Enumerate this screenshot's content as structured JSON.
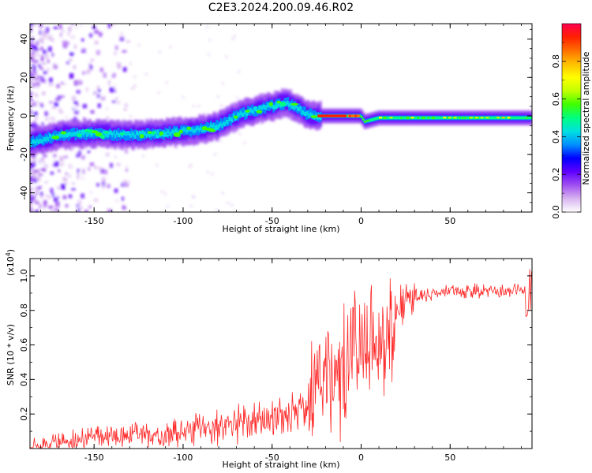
{
  "chart_data": [
    {
      "type": "heatmap",
      "title": "C2E3.2024.200.09.46.R02",
      "xlabel": "Height of straight line (km)",
      "ylabel": "Frequency (Hz)",
      "xlim": [
        -186,
        96
      ],
      "ylim": [
        -50,
        48
      ],
      "xticks": [
        -150,
        -100,
        -50,
        0,
        50
      ],
      "yticks": [
        -40,
        -20,
        0,
        20,
        40
      ],
      "colorbar": {
        "label": "Normalized spectral amplitude",
        "range": [
          0,
          1
        ],
        "ticks": [
          0.0,
          0.2,
          0.4,
          0.6,
          0.8
        ],
        "tick_labels": [
          "0.0",
          "0.2",
          "0.4",
          "0.6",
          "0.8"
        ],
        "colors": [
          "#ffffff",
          "#d8b4f0",
          "#a050f0",
          "#6000ff",
          "#0000ff",
          "#0090ff",
          "#00e0e0",
          "#00ff80",
          "#40ff00",
          "#c0ff00",
          "#ffff00",
          "#ffc000",
          "#ff7000",
          "#ff2000",
          "#ff0050"
        ]
      },
      "ridge": {
        "x": [
          -186,
          -170,
          -150,
          -130,
          -110,
          -90,
          -80,
          -70,
          -60,
          -50,
          -42,
          -38,
          -30,
          -25,
          -20,
          -10,
          0,
          2,
          10,
          20,
          50,
          96
        ],
        "y": [
          -14,
          -10,
          -9,
          -10,
          -9,
          -7,
          -5,
          0,
          3,
          5,
          7,
          5,
          1,
          0,
          0,
          0,
          0,
          -3,
          -1,
          -1,
          -1,
          -1
        ]
      }
    },
    {
      "type": "line",
      "xlabel": "Height of straight line (km)",
      "ylabel": "SNR (10 * v/v)",
      "multiplier_label": "(x10",
      "multiplier_exp": "4",
      "multiplier_close": ")",
      "xlim": [
        -186,
        96
      ],
      "ylim": [
        0,
        1.1
      ],
      "xticks": [
        -150,
        -100,
        -50,
        0,
        50
      ],
      "yticks": [
        0.2,
        0.4,
        0.6,
        0.8,
        1.0
      ],
      "series": [
        {
          "name": "SNR",
          "color": "#ff2a2a",
          "x": [
            -186,
            -170,
            -150,
            -130,
            -110,
            -90,
            -70,
            -50,
            -40,
            -30,
            -27,
            -25,
            -20,
            -15,
            -10,
            -5,
            0,
            5,
            10,
            15,
            20,
            25,
            30,
            50,
            70,
            85,
            90,
            93,
            96
          ],
          "y": [
            0.02,
            0.03,
            0.07,
            0.08,
            0.09,
            0.11,
            0.14,
            0.17,
            0.2,
            0.25,
            0.35,
            0.5,
            0.38,
            0.3,
            0.5,
            0.55,
            0.6,
            0.62,
            0.6,
            0.68,
            0.8,
            0.86,
            0.88,
            0.91,
            0.91,
            0.91,
            0.92,
            0.88,
            0.95
          ]
        }
      ]
    }
  ]
}
